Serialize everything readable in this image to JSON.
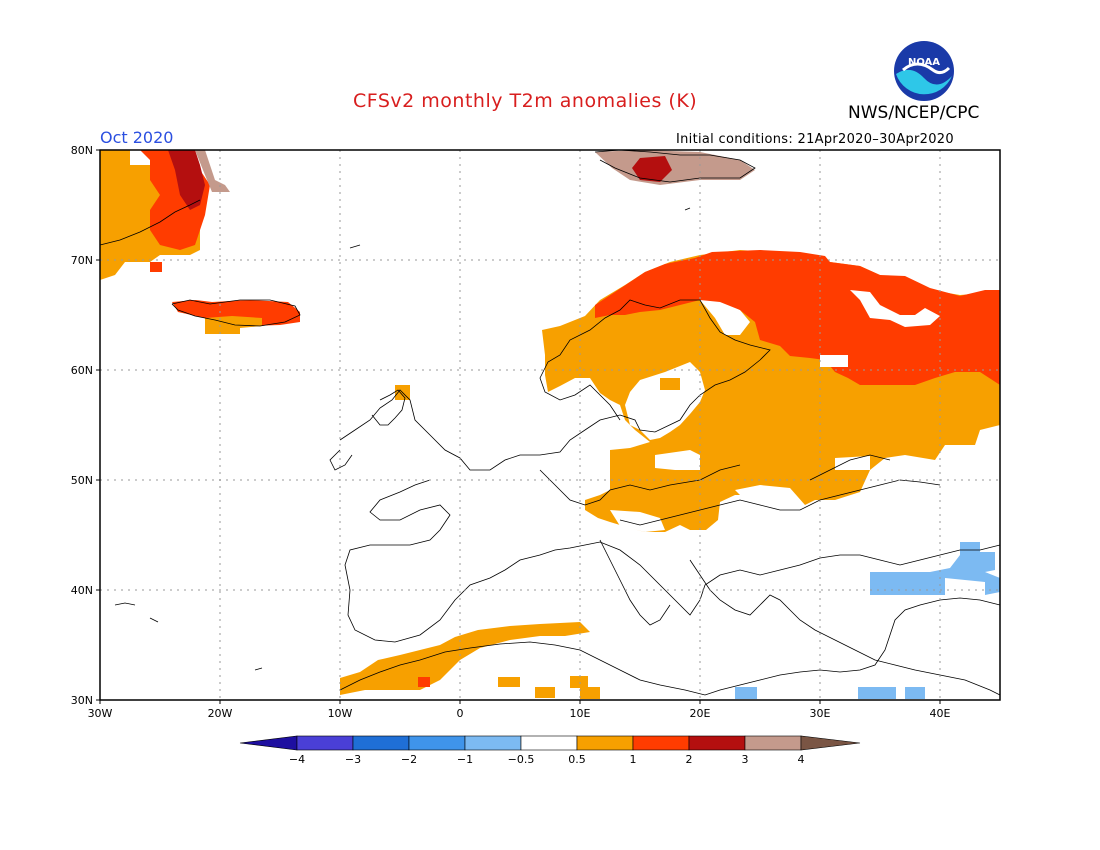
{
  "title": "CFSv2 monthly T2m anomalies (K)",
  "month": "Oct 2020",
  "agency": "NWS/NCEP/CPC",
  "initial_conditions": "Initial conditions: 21Apr2020–30Apr2020",
  "logo_text": "NOAA",
  "map": {
    "lon_range": [
      -30,
      45
    ],
    "lat_range": [
      30,
      80
    ],
    "lat_ticks": [
      "80N",
      "70N",
      "60N",
      "50N",
      "40N",
      "30N"
    ],
    "lon_ticks": [
      "30W",
      "20W",
      "10W",
      "0",
      "10E",
      "20E",
      "30E",
      "40E"
    ]
  },
  "colorbar": {
    "labels": [
      "−4",
      "−3",
      "−2",
      "−1",
      "−0.5",
      "0.5",
      "1",
      "2",
      "3",
      "4"
    ],
    "colors": [
      "#1e0fa0",
      "#4a3fd6",
      "#1f6fd6",
      "#3f94ea",
      "#7cbaf2",
      "#ffffff",
      "#f7a000",
      "#ff3c00",
      "#b40f0f",
      "#c49a8c",
      "#7a5544"
    ]
  }
}
